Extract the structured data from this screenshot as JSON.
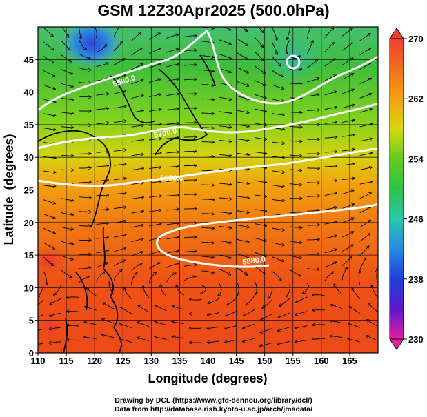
{
  "title": "GSM 12Z30Apr2025 (500.0hPa)",
  "credits": {
    "line1": "Drawing by DCL (https://www.gfd-dennou.org/library/dcl/)",
    "line2": "Data from http://database.rish.kyoto-u.ac.jp/arch/jmadata/"
  },
  "chart_data": {
    "type": "heatmap",
    "title": "GSM 12Z30Apr2025 (500.0hPa)",
    "xlabel": "Longitude (degrees)",
    "ylabel": "Latitude  (degrees)",
    "xlim": [
      110,
      170
    ],
    "ylim": [
      0,
      50
    ],
    "xticks": [
      110,
      115,
      120,
      125,
      130,
      135,
      140,
      145,
      150,
      155,
      160,
      165
    ],
    "yticks": [
      0,
      5,
      10,
      15,
      20,
      25,
      30,
      35,
      40,
      45
    ],
    "grid": true,
    "colorbar": {
      "ticks": [
        270,
        262,
        254,
        246,
        238,
        230
      ],
      "range": [
        230,
        270
      ]
    },
    "contour_labels": [
      "5880.0",
      "5880.0",
      "5700.0",
      "5580.0"
    ],
    "features": [
      {
        "kind": "cold low",
        "lon": 119.5,
        "lat": 47.5
      },
      {
        "kind": "low",
        "lon": 155,
        "lat": 45.5
      },
      {
        "kind": "warm core",
        "lon": 112,
        "lat": 15.5
      },
      {
        "kind": "warm core",
        "lon": 112,
        "lat": 4
      }
    ]
  }
}
